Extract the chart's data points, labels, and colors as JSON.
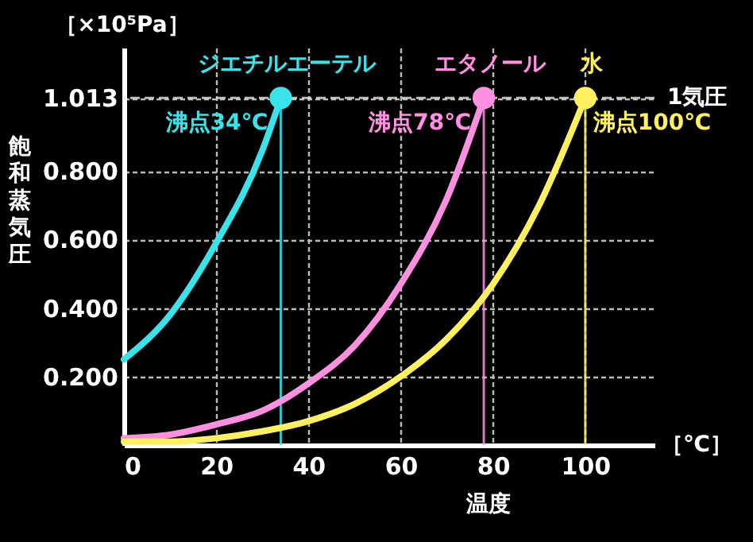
{
  "chart_data": {
    "type": "line",
    "xlabel": "温度",
    "ylabel": "飽和蒸気圧",
    "annotations": [
      "［×10⁵Pa］",
      "［℃］"
    ],
    "xlim": [
      0,
      115
    ],
    "ylim": [
      0,
      1.16
    ],
    "xticks": [
      0,
      20,
      40,
      60,
      80,
      100
    ],
    "yticks": [
      {
        "value": 0.2,
        "label": "0.200"
      },
      {
        "value": 0.4,
        "label": "0.400"
      },
      {
        "value": 0.6,
        "label": "0.600"
      },
      {
        "value": 0.8,
        "label": "0.800"
      },
      {
        "value": 1.013,
        "label": "1.013"
      }
    ],
    "grid": true,
    "series": [
      {
        "name": "ジエチルエーテル",
        "color": "#38e4ea",
        "x": [
          0,
          10,
          20,
          30,
          34
        ],
        "values": [
          0.25,
          0.38,
          0.59,
          0.86,
          1.013
        ]
      },
      {
        "name": "エタノール",
        "color": "#ff8fe0",
        "x": [
          0,
          10,
          20,
          30,
          40,
          50,
          60,
          70,
          78
        ],
        "values": [
          0.02,
          0.03,
          0.06,
          0.1,
          0.18,
          0.29,
          0.47,
          0.72,
          1.013
        ]
      },
      {
        "name": "水",
        "color": "#fff060",
        "x": [
          0,
          10,
          20,
          30,
          40,
          50,
          60,
          70,
          80,
          90,
          100
        ],
        "values": [
          0.01,
          0.01,
          0.02,
          0.04,
          0.07,
          0.12,
          0.2,
          0.31,
          0.47,
          0.7,
          1.013
        ]
      },
      {
        "type": "scatter",
        "marker": "circle",
        "x": [
          34,
          78,
          100
        ],
        "values": [
          1.013,
          1.013,
          1.013
        ],
        "colors": [
          "#38e4ea",
          "#ff8fe0",
          "#fff060"
        ]
      }
    ],
    "ref_lines": [
      {
        "axis": "y",
        "value": 1.013,
        "label": "1気圧",
        "color": "#dddddd",
        "line_style": "dashed"
      },
      {
        "axis": "x",
        "value": 34,
        "label": "沸点34℃",
        "color": "#38e4ea"
      },
      {
        "axis": "x",
        "value": 78,
        "label": "沸点78℃",
        "color": "#ff8fe0"
      },
      {
        "axis": "x",
        "value": 100,
        "label": "沸点100℃",
        "color": "#fff060"
      }
    ]
  }
}
